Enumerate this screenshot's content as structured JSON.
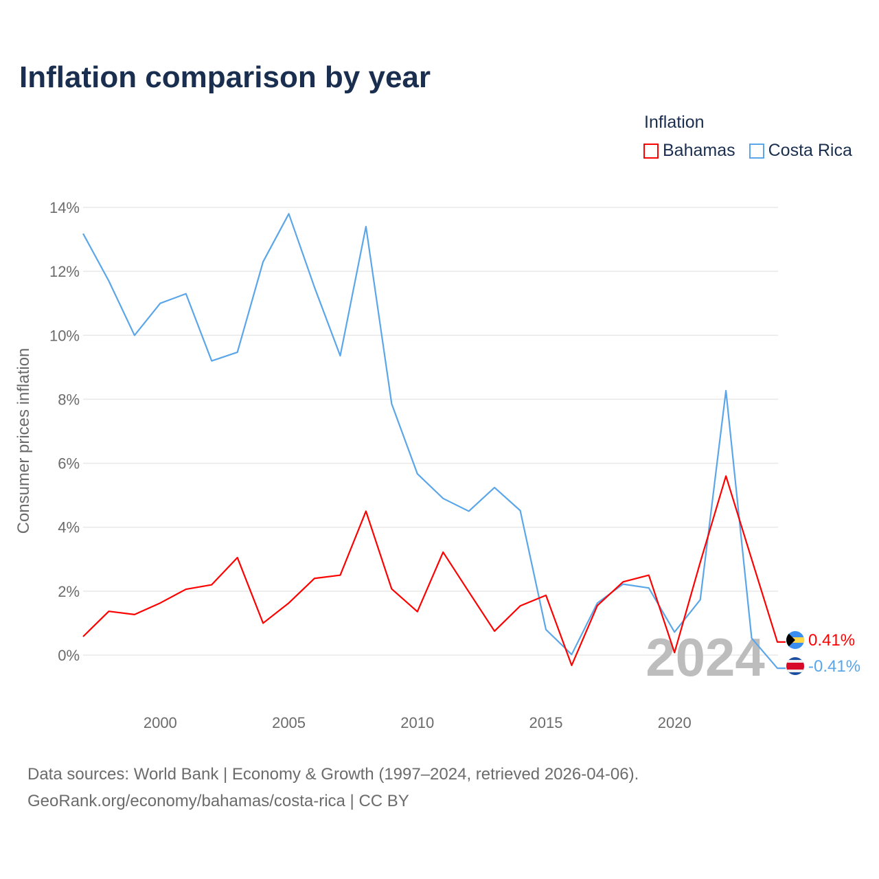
{
  "title": "Inflation comparison by year",
  "legend": {
    "title": "Inflation",
    "items": [
      {
        "name": "Bahamas",
        "color": "#ff0000"
      },
      {
        "name": "Costa Rica",
        "color": "#5aa6e8"
      }
    ]
  },
  "current_year_label": "2024",
  "source_lines": [
    "Data sources: World Bank | Economy & Growth (1997–2024, retrieved 2026-04-06).",
    "GeoRank.org/economy/bahamas/costa-rica | CC BY"
  ],
  "chart_data": {
    "type": "line",
    "title": "Inflation comparison by year",
    "xlabel": "",
    "ylabel": "Consumer prices inflation",
    "xlim": [
      1997,
      2024
    ],
    "ylim": [
      -2,
      14
    ],
    "yticks": [
      0,
      2,
      4,
      6,
      8,
      10,
      12,
      14
    ],
    "ytick_labels": [
      "0%",
      "2%",
      "4%",
      "6%",
      "8%",
      "10%",
      "12%",
      "14%"
    ],
    "xticks": [
      2000,
      2005,
      2010,
      2015,
      2020
    ],
    "xtick_labels": [
      "2000",
      "2005",
      "2010",
      "2015",
      "2020"
    ],
    "grid": true,
    "legend_position": "top-right",
    "x": [
      1997,
      1998,
      1999,
      2000,
      2001,
      2002,
      2003,
      2004,
      2005,
      2006,
      2007,
      2008,
      2009,
      2010,
      2011,
      2012,
      2013,
      2014,
      2015,
      2016,
      2017,
      2018,
      2019,
      2020,
      2021,
      2022,
      2023,
      2024
    ],
    "series": [
      {
        "name": "Bahamas",
        "color": "#ff0000",
        "end_label": "0.41%",
        "values": [
          0.58,
          1.37,
          1.27,
          1.63,
          2.06,
          2.2,
          3.05,
          1.0,
          1.63,
          2.4,
          2.5,
          4.5,
          2.07,
          1.36,
          3.22,
          1.98,
          0.75,
          1.54,
          1.87,
          -0.32,
          1.55,
          2.29,
          2.5,
          0.08,
          2.9,
          5.6,
          3.0,
          0.41
        ]
      },
      {
        "name": "Costa Rica",
        "color": "#5aa6e8",
        "end_label": "-0.41%",
        "values": [
          13.18,
          11.7,
          10.0,
          11.0,
          11.3,
          9.2,
          9.47,
          12.3,
          13.8,
          11.5,
          9.36,
          13.4,
          7.86,
          5.67,
          4.9,
          4.5,
          5.24,
          4.52,
          0.8,
          0.02,
          1.63,
          2.22,
          2.1,
          0.72,
          1.73,
          8.27,
          0.53,
          -0.41
        ]
      }
    ]
  }
}
